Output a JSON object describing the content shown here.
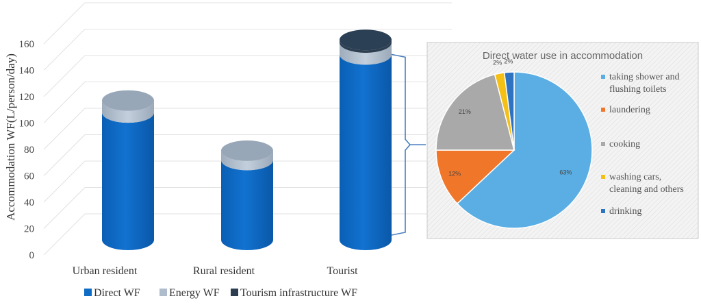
{
  "chart_data": [
    {
      "type": "bar",
      "title": "",
      "xlabel": "",
      "ylabel": "Accommodation WF(L/person/day)",
      "ylim": [
        0,
        160
      ],
      "yticks": [
        "0",
        "20",
        "40",
        "60",
        "80",
        "100",
        "120",
        "140",
        "160"
      ],
      "categories": [
        "Urban resident",
        "Rural resident",
        "Tourist"
      ],
      "stacked": true,
      "grid": true,
      "legend_position": "bottom",
      "series": [
        {
          "name": "Direct WF",
          "color": "#0e6cc4",
          "values": [
            108,
            72,
            152
          ]
        },
        {
          "name": "Energy WF",
          "color": "#aebccc",
          "values": [
            9,
            7,
            9
          ]
        },
        {
          "name": "Tourism infrastructure WF",
          "color": "#2c3e50",
          "values": [
            0,
            0,
            2
          ]
        }
      ]
    },
    {
      "type": "pie",
      "title": "Direct water use in accommodation",
      "legend_position": "right",
      "slices": [
        {
          "label": "taking shower and flushing toilets",
          "lines": [
            "taking shower and",
            "flushing toilets"
          ],
          "value": 63,
          "display": "63%",
          "color": "#5aaee3"
        },
        {
          "label": "laundering",
          "lines": [
            "laundering"
          ],
          "value": 12,
          "display": "12%",
          "color": "#f0762a"
        },
        {
          "label": "cooking",
          "lines": [
            "cooking"
          ],
          "value": 21,
          "display": "21%",
          "color": "#a9a9a9"
        },
        {
          "label": "washing cars, cleaning and others",
          "lines": [
            "washing cars,",
            "cleaning and others"
          ],
          "value": 2,
          "display": "2%",
          "color": "#f5c015"
        },
        {
          "label": "drinking",
          "lines": [
            "drinking"
          ],
          "value": 2,
          "display": "2%",
          "color": "#2e73c2"
        }
      ]
    }
  ]
}
